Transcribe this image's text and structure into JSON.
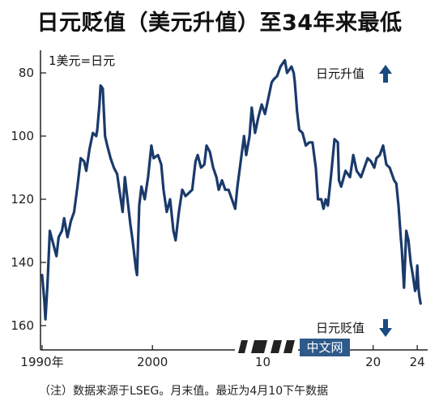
{
  "chart_data": {
    "type": "line",
    "title": "日元贬值（美元升值）至34年来最低",
    "unit_label": "1美元=日元",
    "y_axis_inverted": true,
    "ylim": [
      160,
      72
    ],
    "yticks": [
      80,
      100,
      120,
      140,
      160
    ],
    "xlim": [
      1990,
      2024.5
    ],
    "xticks": [
      {
        "x": 1990,
        "label": "1990年"
      },
      {
        "x": 2000,
        "label": "2000"
      },
      {
        "x": 2010,
        "label": "10"
      },
      {
        "x": 2020,
        "label": "20"
      },
      {
        "x": 2024,
        "label": "24"
      }
    ],
    "series": [
      {
        "color": "#1a3a6b",
        "points": [
          [
            1990.0,
            144
          ],
          [
            1990.2,
            152
          ],
          [
            1990.3,
            158
          ],
          [
            1990.5,
            146
          ],
          [
            1990.7,
            130
          ],
          [
            1991.0,
            134
          ],
          [
            1991.3,
            138
          ],
          [
            1991.5,
            132
          ],
          [
            1991.8,
            130
          ],
          [
            1992.0,
            126
          ],
          [
            1992.3,
            132
          ],
          [
            1992.6,
            127
          ],
          [
            1992.9,
            124
          ],
          [
            1993.2,
            116
          ],
          [
            1993.5,
            107
          ],
          [
            1993.8,
            108
          ],
          [
            1994.0,
            111
          ],
          [
            1994.3,
            104
          ],
          [
            1994.6,
            99
          ],
          [
            1994.9,
            100
          ],
          [
            1995.0,
            98
          ],
          [
            1995.2,
            90
          ],
          [
            1995.3,
            84
          ],
          [
            1995.5,
            85
          ],
          [
            1995.7,
            100
          ],
          [
            1995.9,
            103
          ],
          [
            1996.2,
            107
          ],
          [
            1996.5,
            110
          ],
          [
            1996.8,
            112
          ],
          [
            1997.0,
            117
          ],
          [
            1997.3,
            124
          ],
          [
            1997.5,
            113
          ],
          [
            1997.8,
            122
          ],
          [
            1998.0,
            128
          ],
          [
            1998.2,
            133
          ],
          [
            1998.5,
            142
          ],
          [
            1998.6,
            144
          ],
          [
            1998.8,
            122
          ],
          [
            1999.0,
            116
          ],
          [
            1999.3,
            120
          ],
          [
            1999.6,
            113
          ],
          [
            1999.9,
            103
          ],
          [
            2000.1,
            107
          ],
          [
            2000.5,
            106
          ],
          [
            2000.8,
            109
          ],
          [
            2001.0,
            117
          ],
          [
            2001.3,
            124
          ],
          [
            2001.6,
            120
          ],
          [
            2001.9,
            130
          ],
          [
            2002.1,
            133
          ],
          [
            2002.4,
            124
          ],
          [
            2002.7,
            117
          ],
          [
            2003.0,
            119
          ],
          [
            2003.3,
            118
          ],
          [
            2003.6,
            117
          ],
          [
            2003.9,
            108
          ],
          [
            2004.1,
            106
          ],
          [
            2004.4,
            110
          ],
          [
            2004.7,
            109
          ],
          [
            2004.9,
            103
          ],
          [
            2005.2,
            105
          ],
          [
            2005.5,
            110
          ],
          [
            2005.8,
            113
          ],
          [
            2006.0,
            117
          ],
          [
            2006.3,
            114
          ],
          [
            2006.6,
            117
          ],
          [
            2006.9,
            117
          ],
          [
            2007.2,
            120
          ],
          [
            2007.5,
            123
          ],
          [
            2007.7,
            116
          ],
          [
            2008.0,
            108
          ],
          [
            2008.3,
            100
          ],
          [
            2008.5,
            106
          ],
          [
            2008.8,
            100
          ],
          [
            2009.0,
            91
          ],
          [
            2009.3,
            99
          ],
          [
            2009.6,
            94
          ],
          [
            2009.9,
            90
          ],
          [
            2010.2,
            93
          ],
          [
            2010.5,
            88
          ],
          [
            2010.8,
            83
          ],
          [
            2011.0,
            82
          ],
          [
            2011.3,
            81
          ],
          [
            2011.6,
            78
          ],
          [
            2011.8,
            77
          ],
          [
            2012.0,
            76
          ],
          [
            2012.2,
            80
          ],
          [
            2012.4,
            79
          ],
          [
            2012.6,
            78
          ],
          [
            2012.8,
            80
          ],
          [
            2012.9,
            83
          ],
          [
            2013.1,
            92
          ],
          [
            2013.3,
            98
          ],
          [
            2013.6,
            99
          ],
          [
            2013.9,
            103
          ],
          [
            2014.2,
            102
          ],
          [
            2014.5,
            102
          ],
          [
            2014.8,
            110
          ],
          [
            2015.0,
            120
          ],
          [
            2015.3,
            120
          ],
          [
            2015.5,
            123
          ],
          [
            2015.7,
            120
          ],
          [
            2015.9,
            122
          ],
          [
            2016.2,
            112
          ],
          [
            2016.5,
            101
          ],
          [
            2016.8,
            102
          ],
          [
            2016.9,
            114
          ],
          [
            2017.1,
            116
          ],
          [
            2017.5,
            111
          ],
          [
            2017.9,
            113
          ],
          [
            2018.2,
            106
          ],
          [
            2018.5,
            111
          ],
          [
            2018.9,
            113
          ],
          [
            2019.2,
            110
          ],
          [
            2019.5,
            107
          ],
          [
            2019.8,
            108
          ],
          [
            2020.1,
            110
          ],
          [
            2020.3,
            107
          ],
          [
            2020.6,
            106
          ],
          [
            2020.9,
            103
          ],
          [
            2021.2,
            109
          ],
          [
            2021.5,
            110
          ],
          [
            2021.9,
            114
          ],
          [
            2022.1,
            115
          ],
          [
            2022.3,
            122
          ],
          [
            2022.5,
            132
          ],
          [
            2022.6,
            136
          ],
          [
            2022.8,
            148
          ],
          [
            2022.9,
            139
          ],
          [
            2023.0,
            130
          ],
          [
            2023.2,
            133
          ],
          [
            2023.4,
            140
          ],
          [
            2023.6,
            144
          ],
          [
            2023.8,
            149
          ],
          [
            2023.9,
            148
          ],
          [
            2024.0,
            141
          ],
          [
            2024.1,
            148
          ],
          [
            2024.2,
            151
          ],
          [
            2024.3,
            153
          ]
        ]
      }
    ],
    "annotations": {
      "top": {
        "text": "日元升值",
        "arrow": "up"
      },
      "bottom": {
        "text": "日元贬值",
        "arrow": "down"
      }
    }
  },
  "watermark_text": "中文网",
  "source_note": "（注）数据来源于LSEG。月末值。最近为4月10下午数据"
}
